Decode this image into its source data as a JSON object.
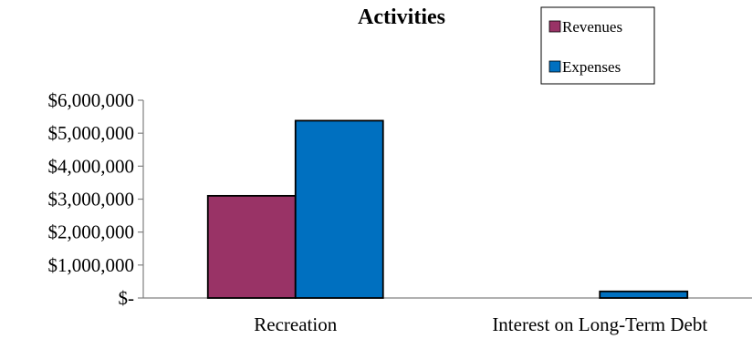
{
  "chart_data": {
    "type": "bar",
    "title": "Activities",
    "categories": [
      "Recreation",
      "Interest on Long-Term Debt"
    ],
    "series": [
      {
        "name": "Revenues",
        "values": [
          3100000,
          0
        ],
        "color": "#993366"
      },
      {
        "name": "Expenses",
        "values": [
          5380000,
          200000
        ],
        "color": "#0070c0"
      }
    ],
    "ylim": [
      0,
      6000000
    ],
    "y_ticks": [
      0,
      1000000,
      2000000,
      3000000,
      4000000,
      5000000,
      6000000
    ],
    "y_tick_labels": [
      "$-",
      "$1,000,000",
      "$2,000,000",
      "$3,000,000",
      "$4,000,000",
      "$5,000,000",
      "$6,000,000"
    ],
    "xlabel": "",
    "ylabel": "",
    "grid": false,
    "legend_position": "top-right"
  }
}
